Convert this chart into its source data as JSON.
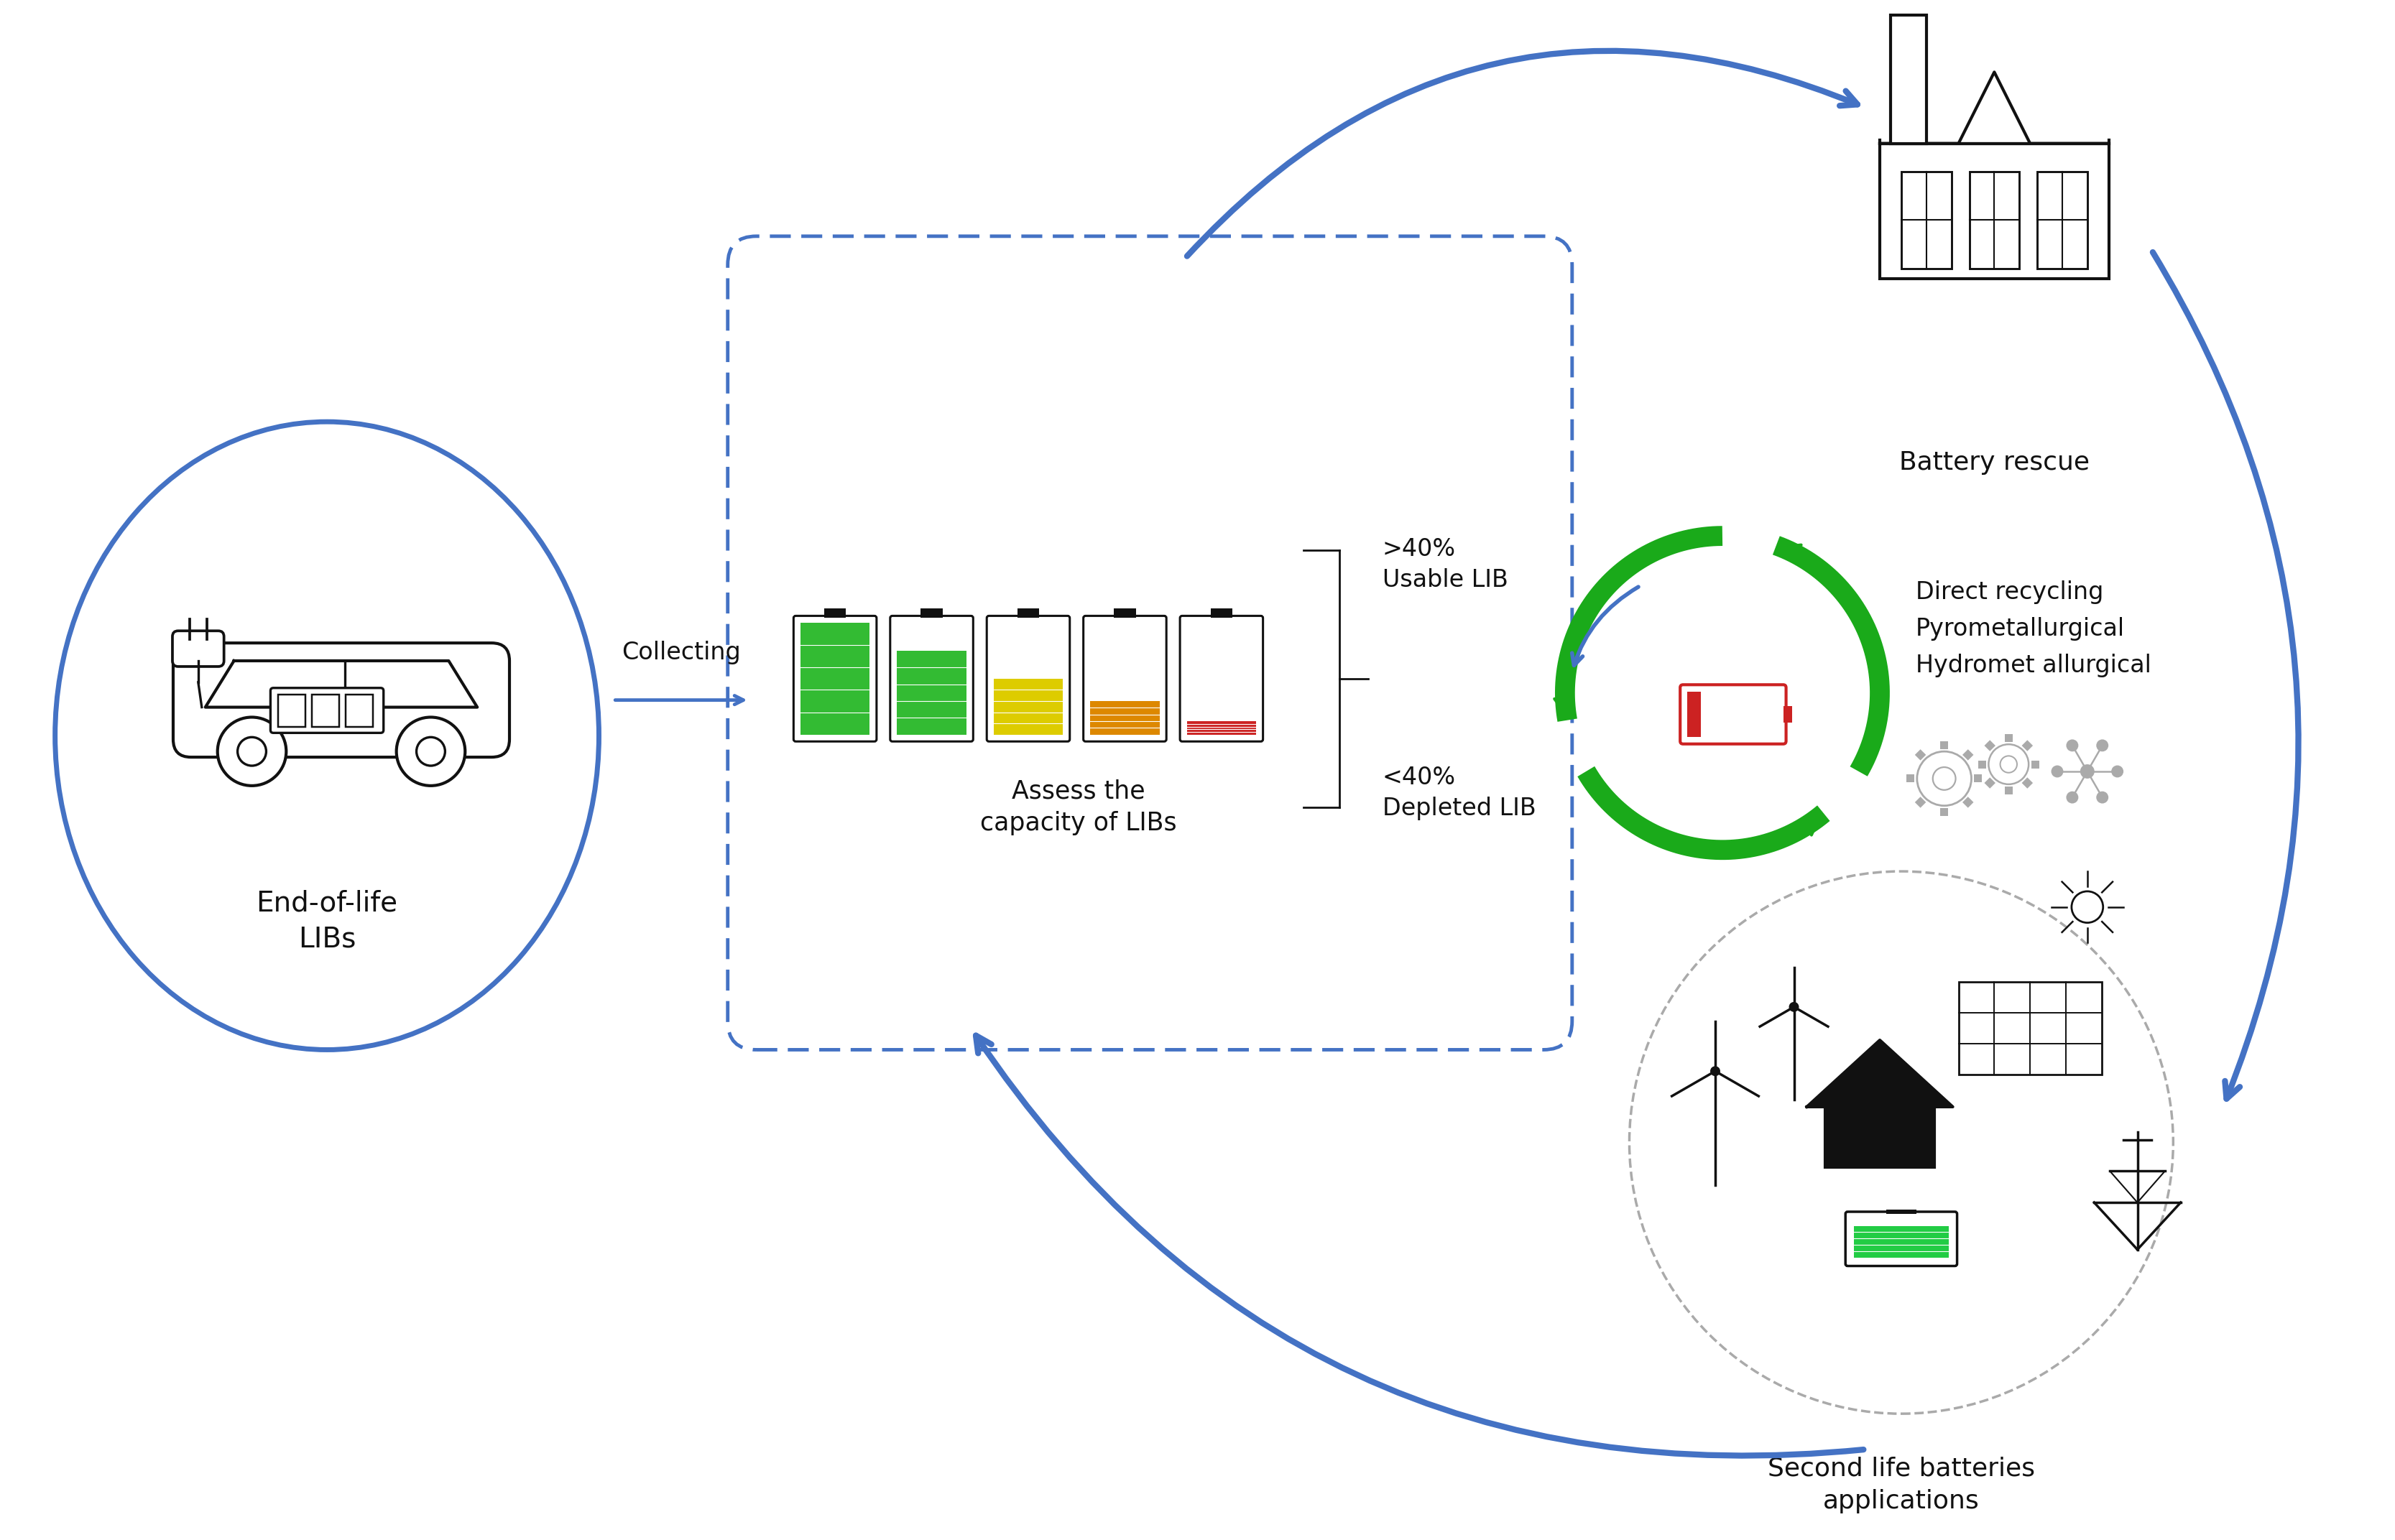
{
  "background_color": "#ffffff",
  "blue_color": "#4472C4",
  "green_color": "#1aaa1a",
  "dark_color": "#111111",
  "gray_color": "#aaaaaa",
  "red_color": "#cc2222",
  "orange_color": "#e67e22",
  "labels": {
    "ev_circle": "End-of-life\nLIBs",
    "collecting": "Collecting",
    "assess": "Assess the\ncapacity of LIBs",
    "usable": ">40%\nUsable LIB",
    "depleted": "<40%\nDepleted LIB",
    "recycle_methods": "Direct recycling\nPyrometallurgical\nHydromet allurgical",
    "battery_rescue": "Battery rescue",
    "second_life": "Second life batteries\napplications"
  },
  "battery_fills": [
    1.0,
    0.75,
    0.5,
    0.3,
    0.12
  ],
  "battery_colors": [
    "#33bb33",
    "#33bb33",
    "#ddcc00",
    "#dd8800",
    "#cc2222"
  ]
}
